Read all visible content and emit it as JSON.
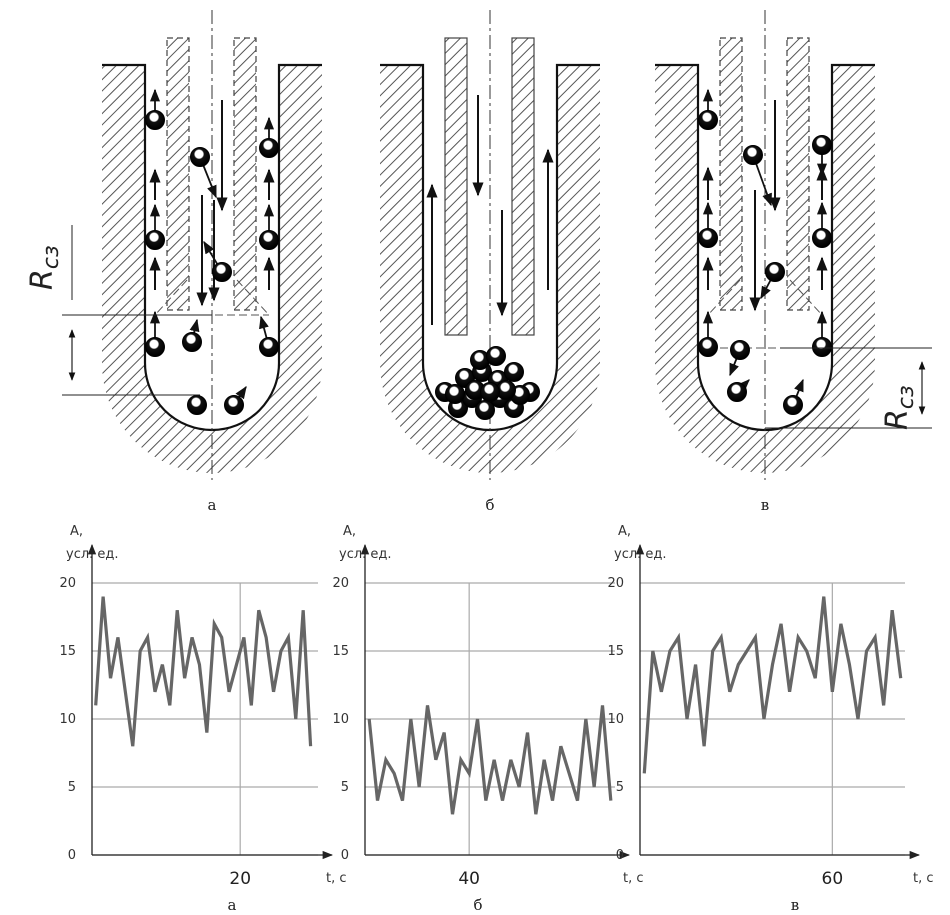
{
  "diagrams": [
    {
      "caption": "а",
      "r_label": "R",
      "r_sub": "сз"
    },
    {
      "caption": "б"
    },
    {
      "caption": "в",
      "r_label": "R",
      "r_sub": "сз"
    }
  ],
  "chart_data": [
    {
      "type": "line",
      "caption": "а",
      "ylabel": "A,",
      "yunit": "усл. ед.",
      "xlabel": "t, c",
      "color": "#666666",
      "grid": true,
      "xlim": [
        0,
        30.5
      ],
      "xticks": [
        20
      ],
      "ylim": [
        0,
        20
      ],
      "yticks": [
        0,
        5,
        10,
        15,
        20
      ],
      "x": [
        0.5,
        1.5,
        2.5,
        3.5,
        4.5,
        5.5,
        6.5,
        7.5,
        8.5,
        9.5,
        10.5,
        11.5,
        12.5,
        13.5,
        14.5,
        15.5,
        16.5,
        17.5,
        18.5,
        19.5,
        20.5,
        21.5,
        22.5,
        23.5,
        24.5,
        25.5,
        26.5,
        27.5,
        28.5,
        29.5
      ],
      "values": [
        11,
        19,
        13,
        16,
        12,
        8,
        15,
        16,
        12,
        14,
        11,
        18,
        13,
        16,
        14,
        9,
        17,
        16,
        12,
        14,
        16,
        11,
        18,
        16,
        12,
        15,
        16,
        10,
        18,
        8
      ]
    },
    {
      "type": "line",
      "caption": "б",
      "ylabel": "A,",
      "yunit": "усл. ед.",
      "xlabel": "t, c",
      "color": "#666666",
      "grid": true,
      "xlim": [
        27.5,
        57.5
      ],
      "xticks": [
        40
      ],
      "ylim": [
        0,
        20
      ],
      "yticks": [
        0,
        5,
        10,
        15,
        20
      ],
      "x": [
        28,
        29,
        30,
        31,
        32,
        33,
        34,
        35,
        36,
        37,
        38,
        39,
        40,
        41,
        42,
        43,
        44,
        45,
        46,
        47,
        48,
        49,
        50,
        51,
        52,
        53,
        54,
        55,
        56,
        57
      ],
      "values": [
        10,
        4,
        7,
        6,
        4,
        10,
        5,
        11,
        7,
        9,
        3,
        7,
        6,
        10,
        4,
        7,
        4,
        7,
        5,
        9,
        3,
        7,
        4,
        8,
        6,
        4,
        10,
        5,
        11,
        4
      ]
    },
    {
      "type": "line",
      "caption": "в",
      "ylabel": "A,",
      "yunit": "усл. ед.",
      "xlabel": "t, c",
      "color": "#666666",
      "grid": true,
      "xlim": [
        37.5,
        68.5
      ],
      "xticks": [
        60
      ],
      "ylim": [
        0,
        20
      ],
      "yticks": [
        0,
        5,
        10,
        15,
        20
      ],
      "x": [
        38,
        39,
        40,
        41,
        42,
        43,
        44,
        45,
        46,
        47,
        48,
        49,
        50,
        51,
        52,
        53,
        54,
        55,
        56,
        57,
        58,
        59,
        60,
        61,
        62,
        63,
        64,
        65,
        66,
        67,
        68
      ],
      "values": [
        6,
        15,
        12,
        15,
        16,
        10,
        14,
        8,
        15,
        16,
        12,
        14,
        15,
        16,
        10,
        14,
        17,
        12,
        16,
        15,
        13,
        19,
        12,
        17,
        14,
        10,
        15,
        16,
        11,
        18,
        13
      ]
    }
  ]
}
